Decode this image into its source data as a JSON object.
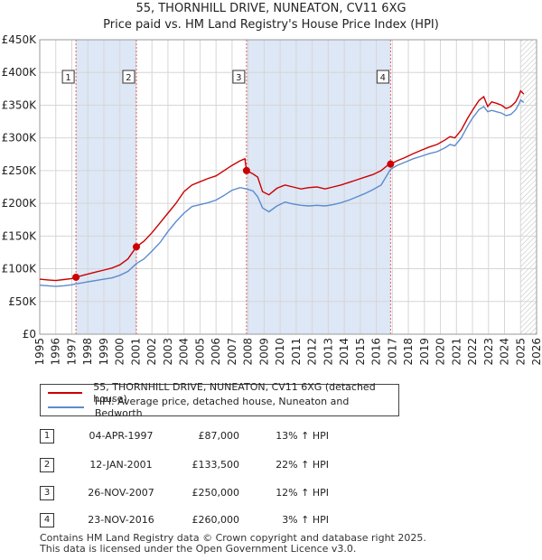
{
  "title": "55, THORNHILL DRIVE, NUNEATON, CV11 6XG",
  "subtitle": "Price paid vs. HM Land Registry's House Price Index (HPI)",
  "colors": {
    "property": "#cc0000",
    "hpi": "#5b8ccc",
    "shade": "#dde7f6",
    "marker_line": "#e06060",
    "grid": "#d6d6d6"
  },
  "chart_data": {
    "type": "line",
    "xlim": [
      1995,
      2026
    ],
    "ylim": [
      0,
      450000
    ],
    "x_ticks": [
      "1995",
      "1996",
      "1997",
      "1998",
      "1999",
      "2000",
      "2001",
      "2002",
      "2003",
      "2004",
      "2005",
      "2006",
      "2007",
      "2008",
      "2009",
      "2010",
      "2011",
      "2012",
      "2013",
      "2014",
      "2015",
      "2016",
      "2017",
      "2018",
      "2019",
      "2020",
      "2021",
      "2022",
      "2023",
      "2024",
      "2025",
      "2026"
    ],
    "y_ticks": [
      {
        "value": 0,
        "label": "£0"
      },
      {
        "value": 50000,
        "label": "£50K"
      },
      {
        "value": 100000,
        "label": "£100K"
      },
      {
        "value": 150000,
        "label": "£150K"
      },
      {
        "value": 200000,
        "label": "£200K"
      },
      {
        "value": 250000,
        "label": "£250K"
      },
      {
        "value": 300000,
        "label": "£300K"
      },
      {
        "value": 350000,
        "label": "£350K"
      },
      {
        "value": 400000,
        "label": "£400K"
      },
      {
        "value": 450000,
        "label": "£450K"
      }
    ],
    "grid": true,
    "series": [
      {
        "name": "55, THORNHILL DRIVE, NUNEATON, CV11 6XG (detached house)",
        "color": "#cc0000",
        "points": [
          [
            1995.0,
            84000
          ],
          [
            1995.5,
            83000
          ],
          [
            1996.0,
            82000
          ],
          [
            1996.5,
            83500
          ],
          [
            1997.0,
            85000
          ],
          [
            1997.26,
            87000
          ],
          [
            1997.7,
            90000
          ],
          [
            1998.0,
            92000
          ],
          [
            1998.5,
            95000
          ],
          [
            1999.0,
            98000
          ],
          [
            1999.5,
            101000
          ],
          [
            2000.0,
            106000
          ],
          [
            2000.5,
            115000
          ],
          [
            2001.03,
            133500
          ],
          [
            2001.5,
            142000
          ],
          [
            2002.0,
            155000
          ],
          [
            2002.5,
            170000
          ],
          [
            2003.0,
            185000
          ],
          [
            2003.5,
            200000
          ],
          [
            2004.0,
            218000
          ],
          [
            2004.5,
            228000
          ],
          [
            2005.0,
            233000
          ],
          [
            2005.5,
            238000
          ],
          [
            2006.0,
            242000
          ],
          [
            2006.5,
            250000
          ],
          [
            2007.0,
            258000
          ],
          [
            2007.5,
            265000
          ],
          [
            2007.8,
            268000
          ],
          [
            2007.9,
            250000
          ],
          [
            2008.3,
            245000
          ],
          [
            2008.6,
            240000
          ],
          [
            2008.9,
            218000
          ],
          [
            2009.3,
            213000
          ],
          [
            2009.8,
            223000
          ],
          [
            2010.3,
            228000
          ],
          [
            2010.8,
            225000
          ],
          [
            2011.3,
            222000
          ],
          [
            2011.8,
            224000
          ],
          [
            2012.3,
            225000
          ],
          [
            2012.8,
            222000
          ],
          [
            2013.3,
            225000
          ],
          [
            2013.8,
            228000
          ],
          [
            2014.3,
            232000
          ],
          [
            2014.8,
            236000
          ],
          [
            2015.3,
            240000
          ],
          [
            2015.8,
            244000
          ],
          [
            2016.3,
            250000
          ],
          [
            2016.7,
            258000
          ],
          [
            2016.89,
            260000
          ],
          [
            2017.3,
            265000
          ],
          [
            2017.8,
            270000
          ],
          [
            2018.3,
            276000
          ],
          [
            2018.8,
            281000
          ],
          [
            2019.3,
            286000
          ],
          [
            2019.8,
            290000
          ],
          [
            2020.3,
            297000
          ],
          [
            2020.6,
            302000
          ],
          [
            2020.9,
            300000
          ],
          [
            2021.3,
            312000
          ],
          [
            2021.7,
            330000
          ],
          [
            2022.0,
            342000
          ],
          [
            2022.4,
            357000
          ],
          [
            2022.7,
            363000
          ],
          [
            2022.95,
            348000
          ],
          [
            2023.2,
            355000
          ],
          [
            2023.5,
            353000
          ],
          [
            2023.8,
            350000
          ],
          [
            2024.1,
            345000
          ],
          [
            2024.4,
            348000
          ],
          [
            2024.7,
            355000
          ],
          [
            2024.9,
            365000
          ],
          [
            2025.0,
            372000
          ],
          [
            2025.2,
            367000
          ]
        ]
      },
      {
        "name": "HPI: Average price, detached house, Nuneaton and Bedworth",
        "color": "#5b8ccc",
        "points": [
          [
            1995.0,
            75000
          ],
          [
            1995.5,
            74000
          ],
          [
            1996.0,
            73000
          ],
          [
            1996.5,
            74000
          ],
          [
            1997.0,
            75500
          ],
          [
            1997.26,
            77000
          ],
          [
            1997.7,
            78500
          ],
          [
            1998.0,
            80000
          ],
          [
            1998.5,
            82000
          ],
          [
            1999.0,
            84000
          ],
          [
            1999.5,
            86000
          ],
          [
            2000.0,
            90000
          ],
          [
            2000.5,
            96000
          ],
          [
            2001.03,
            108000
          ],
          [
            2001.5,
            115000
          ],
          [
            2002.0,
            127000
          ],
          [
            2002.5,
            140000
          ],
          [
            2003.0,
            157000
          ],
          [
            2003.5,
            172000
          ],
          [
            2004.0,
            185000
          ],
          [
            2004.5,
            195000
          ],
          [
            2005.0,
            198000
          ],
          [
            2005.5,
            201000
          ],
          [
            2006.0,
            205000
          ],
          [
            2006.5,
            212000
          ],
          [
            2007.0,
            220000
          ],
          [
            2007.5,
            224000
          ],
          [
            2007.9,
            222000
          ],
          [
            2008.3,
            219000
          ],
          [
            2008.6,
            210000
          ],
          [
            2008.9,
            193000
          ],
          [
            2009.3,
            187000
          ],
          [
            2009.8,
            196000
          ],
          [
            2010.3,
            202000
          ],
          [
            2010.8,
            199000
          ],
          [
            2011.3,
            197000
          ],
          [
            2011.8,
            196000
          ],
          [
            2012.3,
            197000
          ],
          [
            2012.8,
            196000
          ],
          [
            2013.3,
            198000
          ],
          [
            2013.8,
            201000
          ],
          [
            2014.3,
            205000
          ],
          [
            2014.8,
            210000
          ],
          [
            2015.3,
            215000
          ],
          [
            2015.8,
            221000
          ],
          [
            2016.3,
            228000
          ],
          [
            2016.89,
            252000
          ],
          [
            2017.3,
            258000
          ],
          [
            2017.8,
            263000
          ],
          [
            2018.3,
            268000
          ],
          [
            2018.8,
            272000
          ],
          [
            2019.3,
            276000
          ],
          [
            2019.8,
            279000
          ],
          [
            2020.3,
            285000
          ],
          [
            2020.6,
            290000
          ],
          [
            2020.9,
            288000
          ],
          [
            2021.3,
            300000
          ],
          [
            2021.7,
            318000
          ],
          [
            2022.0,
            330000
          ],
          [
            2022.4,
            343000
          ],
          [
            2022.7,
            348000
          ],
          [
            2022.95,
            340000
          ],
          [
            2023.2,
            342000
          ],
          [
            2023.5,
            340000
          ],
          [
            2023.8,
            338000
          ],
          [
            2024.1,
            334000
          ],
          [
            2024.4,
            336000
          ],
          [
            2024.7,
            343000
          ],
          [
            2024.9,
            352000
          ],
          [
            2025.0,
            358000
          ],
          [
            2025.2,
            354000
          ]
        ]
      }
    ],
    "sales": [
      {
        "num": "1",
        "x": 1997.26,
        "price": 87000
      },
      {
        "num": "2",
        "x": 2001.03,
        "price": 133500
      },
      {
        "num": "3",
        "x": 2007.9,
        "price": 250000
      },
      {
        "num": "4",
        "x": 2016.89,
        "price": 260000
      }
    ],
    "shaded_ranges": [
      [
        1997.26,
        2001.03
      ],
      [
        2007.9,
        2016.89
      ]
    ],
    "hatched_from": 2025.0
  },
  "legend": {
    "property_label": "55, THORNHILL DRIVE, NUNEATON, CV11 6XG (detached house)",
    "hpi_label": "HPI: Average price, detached house, Nuneaton and Bedworth"
  },
  "table": {
    "rows": [
      {
        "num": "1",
        "date": "04-APR-1997",
        "price": "£87,000",
        "hpi": "13% ↑ HPI"
      },
      {
        "num": "2",
        "date": "12-JAN-2001",
        "price": "£133,500",
        "hpi": "22% ↑ HPI"
      },
      {
        "num": "3",
        "date": "26-NOV-2007",
        "price": "£250,000",
        "hpi": "12% ↑ HPI"
      },
      {
        "num": "4",
        "date": "23-NOV-2016",
        "price": "£260,000",
        "hpi": "3% ↑ HPI"
      }
    ]
  },
  "footer": {
    "line1": "Contains HM Land Registry data © Crown copyright and database right 2025.",
    "line2": "This data is licensed under the Open Government Licence v3.0."
  }
}
